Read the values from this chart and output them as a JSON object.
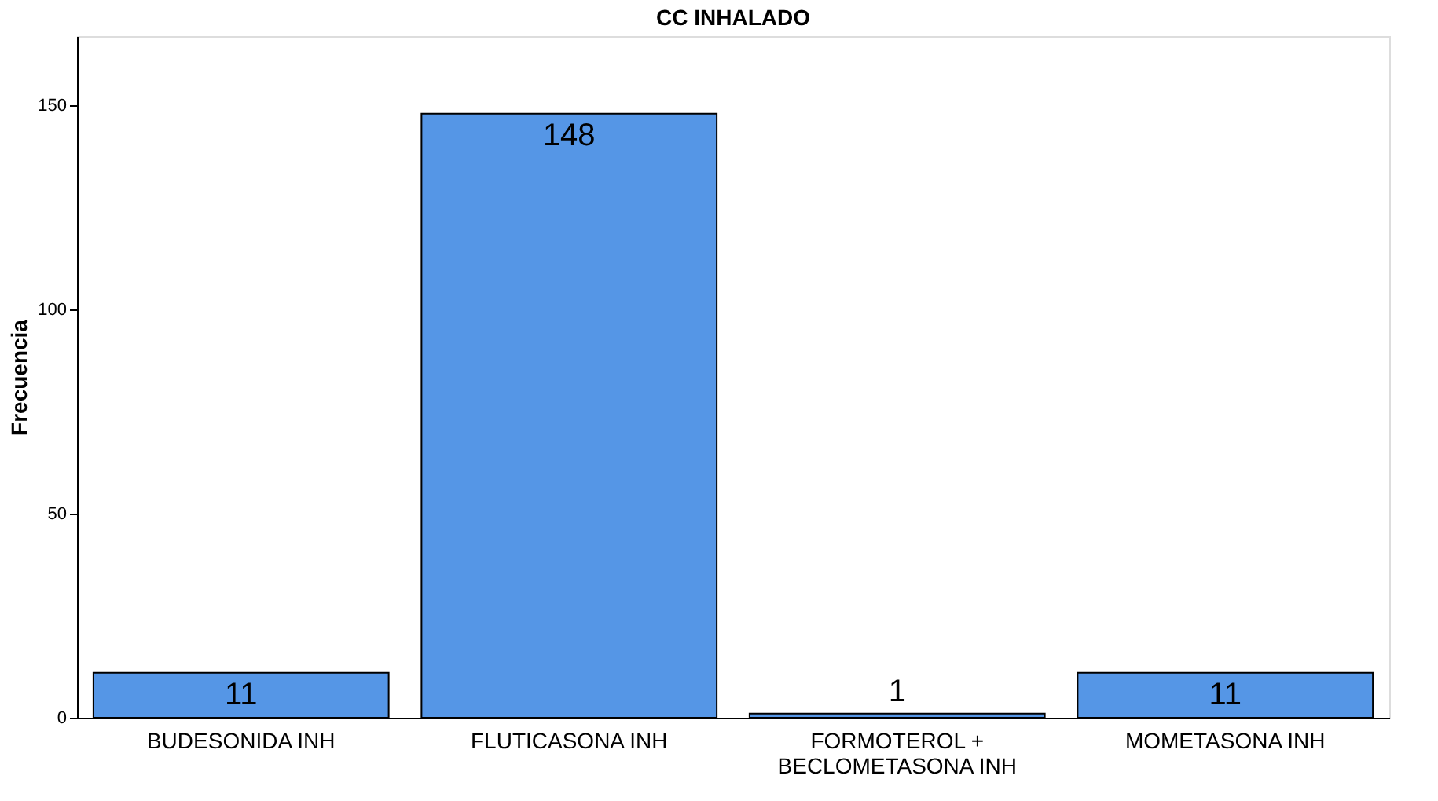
{
  "chart_data": {
    "type": "bar",
    "title": "CC INHALADO",
    "ylabel": "Frecuencia",
    "categories": [
      "BUDESONIDA INH",
      "FLUTICASONA INH",
      "FORMOTEROL + BECLOMETASONA INH",
      "MOMETASONA INH"
    ],
    "values": [
      11,
      148,
      1,
      11
    ],
    "color": "#5596e6",
    "ylim": [
      0,
      167
    ],
    "yticks": [
      0,
      50,
      100,
      150
    ],
    "grid": false,
    "data_labels": true
  }
}
